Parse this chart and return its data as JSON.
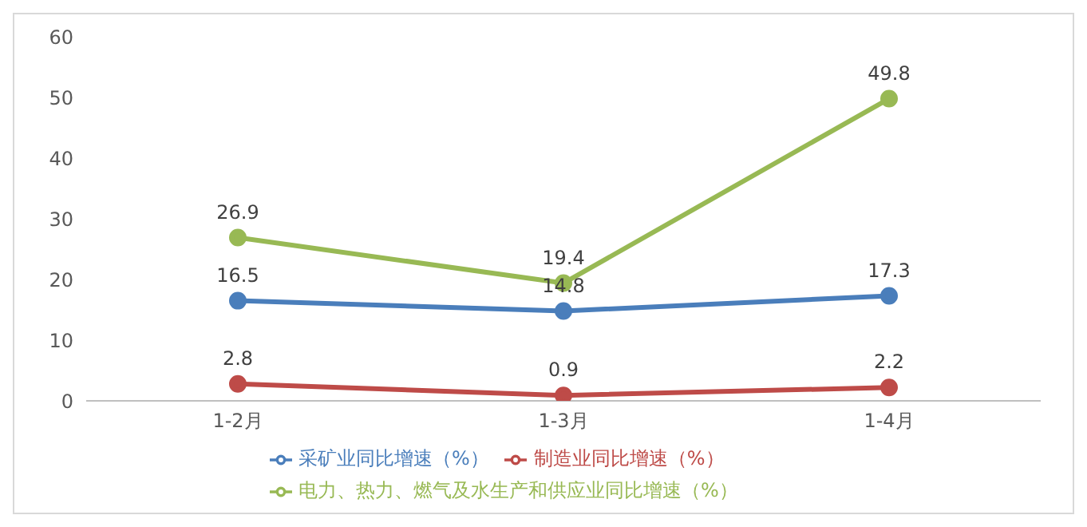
{
  "chart_data": {
    "type": "line",
    "categories": [
      "1-2月",
      "1-3月",
      "1-4月"
    ],
    "series": [
      {
        "name": "采矿业同比增速（%）",
        "color": "#4a7ebb",
        "values": [
          16.5,
          14.8,
          17.3
        ]
      },
      {
        "name": "制造业同比增速（%）",
        "color": "#be4b48",
        "values": [
          2.8,
          0.9,
          2.2
        ]
      },
      {
        "name": "电力、热力、燃气及水生产和供应业同比增速（%）",
        "color": "#98b954",
        "values": [
          26.9,
          19.4,
          49.8
        ]
      }
    ],
    "ylim": [
      0,
      60
    ],
    "yticks": [
      0,
      10,
      20,
      30,
      40,
      50,
      60
    ],
    "grid": false,
    "legend": "bottom",
    "marker": "circle",
    "line_style": "solid",
    "data_labels": true
  }
}
